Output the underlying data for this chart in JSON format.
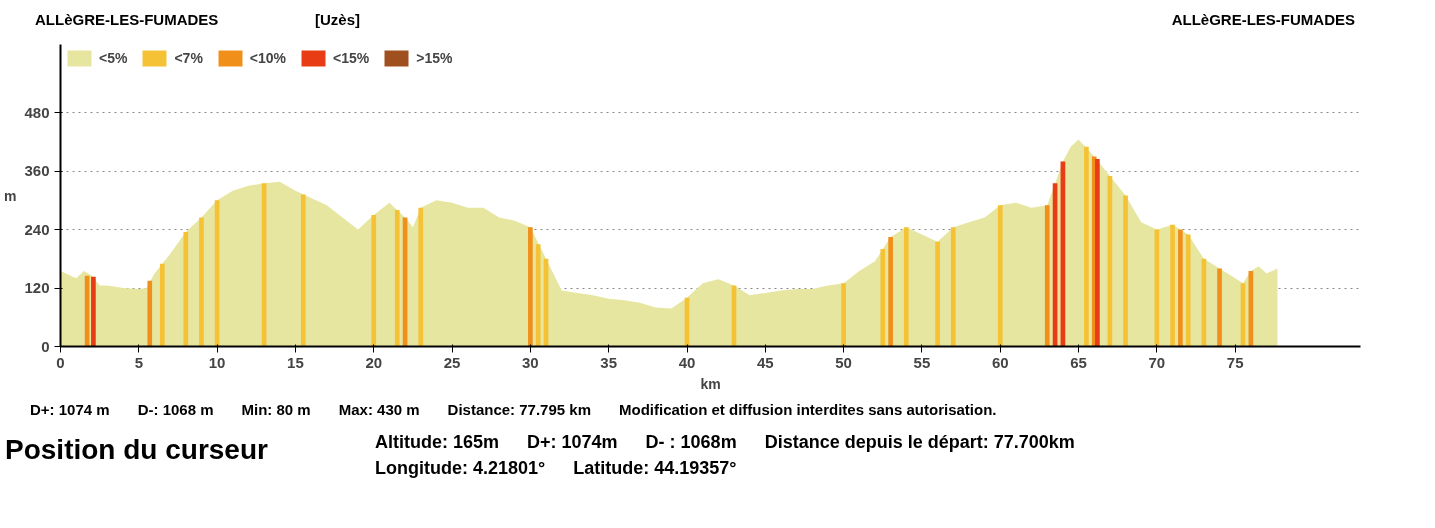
{
  "chart_data": {
    "type": "area",
    "xlabel": "km",
    "ylabel": "m",
    "xlim": [
      0,
      83
    ],
    "ylim": [
      0,
      620
    ],
    "xticks": [
      0,
      5,
      10,
      15,
      20,
      25,
      30,
      35,
      40,
      45,
      50,
      55,
      60,
      65,
      70,
      75
    ],
    "yticks": [
      0,
      120,
      240,
      360,
      480
    ],
    "grid": "y",
    "legend": "top left",
    "annotations": [
      "ALLèGRE-LES-FUMADES",
      "[Uzès]",
      "ALLèGRE-LES-FUMADES",
      "D+: 1074 m",
      "D-: 1068 m",
      "Min: 80 m",
      "Max: 430 m",
      "Distance: 77.795 km",
      "Modification et diffusion interdites sans autorisation.",
      "Position du curseur",
      "Altitude: 165m",
      "D+: 1074m",
      "D- : 1068m",
      "Distance depuis le départ: 77.700km",
      "Longitude: 4.21801°",
      "Latitude: 44.19357°"
    ],
    "series": [
      {
        "name": "<5%",
        "color": "#e6e6a0",
        "x": [
          0,
          1,
          1.5,
          2,
          2.5,
          3,
          4,
          5,
          5.5,
          6,
          7,
          8,
          9,
          10,
          11,
          12,
          13,
          14,
          15,
          16,
          17,
          18,
          19,
          20,
          21,
          22,
          22.5,
          23,
          24,
          25,
          26,
          27,
          28,
          29,
          30,
          31,
          32,
          33,
          34,
          35,
          36,
          37,
          38,
          39,
          40,
          41,
          42,
          43,
          44,
          45,
          46,
          47,
          48,
          49,
          50,
          51,
          52,
          53,
          54,
          55,
          56,
          57,
          58,
          59,
          60,
          61,
          62,
          63,
          64,
          64.5,
          65,
          66,
          67,
          68,
          69,
          70,
          71,
          72,
          73,
          74,
          75,
          75.5,
          76,
          76.5,
          77,
          77.7
        ],
        "values": [
          155,
          140,
          155,
          145,
          125,
          125,
          120,
          118,
          120,
          150,
          190,
          235,
          265,
          300,
          320,
          330,
          335,
          338,
          320,
          305,
          290,
          265,
          240,
          270,
          295,
          265,
          245,
          285,
          300,
          295,
          285,
          285,
          265,
          258,
          245,
          180,
          115,
          110,
          105,
          98,
          95,
          90,
          80,
          78,
          100,
          130,
          138,
          125,
          105,
          110,
          115,
          118,
          118,
          125,
          130,
          155,
          175,
          225,
          245,
          230,
          215,
          245,
          255,
          265,
          290,
          295,
          285,
          290,
          380,
          410,
          425,
          390,
          350,
          310,
          255,
          240,
          250,
          230,
          180,
          160,
          140,
          130,
          155,
          165,
          150,
          160
        ]
      },
      {
        "name": "<7%",
        "type": "bar",
        "color": "#f5c236",
        "x": [
          6.5,
          8,
          9,
          10,
          13,
          15.5,
          20,
          21.5,
          23,
          30.5,
          31,
          40,
          43,
          50,
          52.5,
          54,
          56,
          57,
          60,
          65.5,
          67,
          68,
          70,
          71,
          72,
          73,
          75.5
        ],
        "values": [
          170,
          235,
          265,
          300,
          335,
          312,
          270,
          280,
          285,
          210,
          180,
          100,
          125,
          130,
          200,
          245,
          215,
          245,
          290,
          410,
          350,
          310,
          240,
          250,
          230,
          180,
          130
        ]
      },
      {
        "name": "<10%",
        "type": "bar",
        "color": "#f0901a",
        "x": [
          1.7,
          5.7,
          22,
          30,
          53,
          63,
          66,
          71.5,
          74,
          76
        ],
        "values": [
          145,
          135,
          265,
          245,
          225,
          290,
          390,
          240,
          160,
          155
        ]
      },
      {
        "name": "<15%",
        "type": "bar",
        "color": "#e83c14",
        "x": [
          2.1,
          63.5,
          64,
          66.2
        ],
        "values": [
          143,
          335,
          380,
          385
        ]
      },
      {
        "name": ">15%",
        "type": "bar",
        "color": "#a0501e"
      }
    ]
  }
}
